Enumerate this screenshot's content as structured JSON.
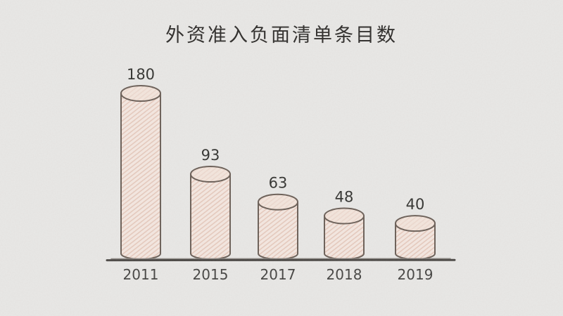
{
  "chart_data": {
    "type": "bar",
    "variant": "hand-drawn-cylinder",
    "title": "外资准入负面清单条目数",
    "categories": [
      "2011",
      "2015",
      "2017",
      "2018",
      "2019"
    ],
    "values": [
      180,
      93,
      63,
      48,
      40
    ],
    "xlabel": "",
    "ylabel": "",
    "ylim": [
      0,
      180
    ],
    "grid": false,
    "legend": false,
    "data_labels_shown": true,
    "style": {
      "background": "#e9e8e6",
      "bar_fill": "#f5e8e1",
      "bar_fill_top": "#f3e4db",
      "bar_hatch": "#e5c7b9",
      "bar_outline": "#6b5f57",
      "axis_color": "#4b4845",
      "axis_echo_color": "#8d8883",
      "value_text_color": "#333330",
      "category_text_color": "#454442",
      "title_color": "#2e2c2a"
    }
  }
}
